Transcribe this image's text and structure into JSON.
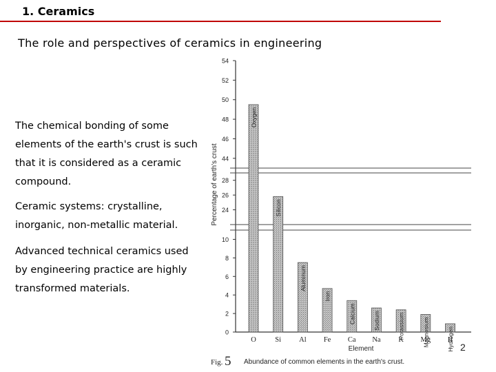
{
  "header": {
    "section": "1. Ceramics",
    "rule_color": "#c00000"
  },
  "slide": {
    "title": "The role and perspectives of ceramics in engineering",
    "page_number": "2"
  },
  "body": {
    "paragraphs": [
      [
        "The chemical bonding of some",
        "elements of the earth's crust is such",
        "that it is considered as a  ceramic",
        "compound."
      ],
      [
        "Ceramic systems: crystalline,",
        "inorganic, non-metallic material."
      ],
      [
        "Advanced technical ceramics used",
        "by engineering practice are highly",
        "transformed materials."
      ]
    ]
  },
  "chart_data": {
    "type": "bar",
    "ylabel": "Percentage of earth's crust",
    "xlabel": "Element",
    "caption_prefix": "Fig.",
    "caption_number": "5",
    "caption": "Abundance of common elements in the earth's crust.",
    "broken_axis": true,
    "y_segments": [
      {
        "range": [
          0,
          11
        ],
        "ticks": [
          0,
          2,
          4,
          6,
          8,
          10
        ]
      },
      {
        "range": [
          22,
          29
        ],
        "ticks": [
          24,
          26,
          28
        ]
      },
      {
        "range": [
          43,
          54
        ],
        "ticks": [
          44,
          46,
          48,
          50,
          52,
          54
        ]
      }
    ],
    "categories": [
      "O",
      "Si",
      "Al",
      "Fe",
      "Ca",
      "Na",
      "K",
      "Mg",
      "H"
    ],
    "bar_labels": [
      "Oxygen",
      "Silicon",
      "Aluminum",
      "Iron",
      "Calcium",
      "Sodium",
      "Potassium",
      "Magnesium",
      "Hydrogen"
    ],
    "values": [
      49.5,
      25.8,
      7.5,
      4.7,
      3.4,
      2.6,
      2.4,
      1.9,
      0.9
    ],
    "bar_color": "#b8b8b8"
  }
}
